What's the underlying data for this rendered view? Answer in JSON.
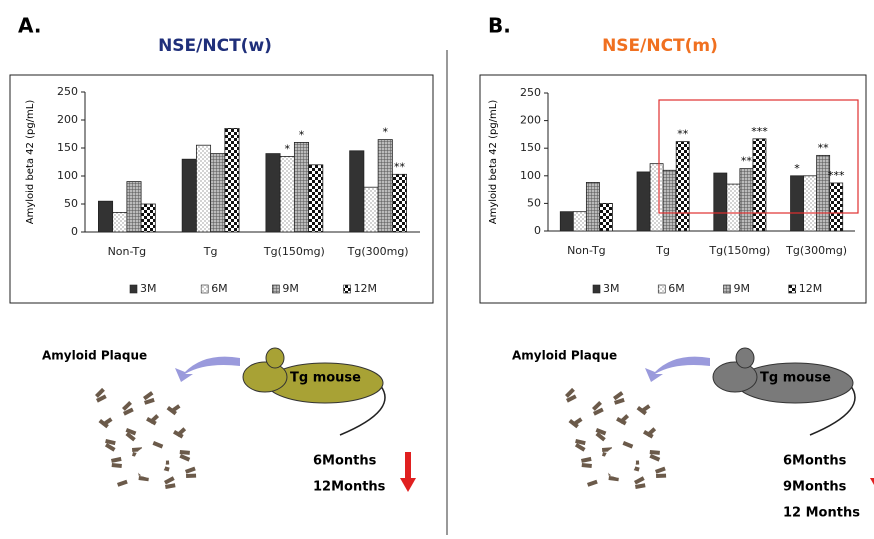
{
  "chart_data": [
    {
      "type": "bar",
      "panel_label": "A.",
      "title": "NSE/NCT(w)",
      "title_color": "#1f2f7a",
      "ylabel": "Amyloid beta 42  (pg/mL)",
      "categories": [
        "Non-Tg",
        "Tg",
        "Tg(150mg)",
        "Tg(300mg)"
      ],
      "series": [
        {
          "name": "3M",
          "color": "#333333",
          "pattern": "solid",
          "values": [
            55,
            130,
            140,
            145
          ],
          "labels": [
            null,
            null,
            null,
            null
          ]
        },
        {
          "name": "6M",
          "color": "#ffffff",
          "pattern": "dots",
          "values": [
            35,
            155,
            135,
            80
          ],
          "labels": [
            null,
            null,
            "*",
            null
          ]
        },
        {
          "name": "9M",
          "color": "#8a8a8a",
          "pattern": "grid",
          "values": [
            90,
            140,
            160,
            165
          ],
          "labels": [
            null,
            null,
            "*",
            "*"
          ]
        },
        {
          "name": "12M",
          "color": "#222222",
          "pattern": "checker",
          "values": [
            50,
            185,
            120,
            103
          ],
          "labels": [
            null,
            null,
            null,
            "**"
          ]
        }
      ],
      "ylim": [
        0,
        250
      ],
      "yticks": [
        0,
        50,
        100,
        150,
        200,
        250
      ],
      "illustration": {
        "plaque_label": "Amyloid Plaque",
        "mouse_label": "Tg mouse",
        "mouse_color": "#a8a235",
        "timepoints": [
          "6Months",
          "12Months"
        ]
      }
    },
    {
      "type": "bar",
      "panel_label": "B.",
      "title": "NSE/NCT(m)",
      "title_color": "#f07020",
      "ylabel": "Amyloid beta 42  (pg/mL)",
      "categories": [
        "Non-Tg",
        "Tg",
        "Tg(150mg)",
        "Tg(300mg)"
      ],
      "series": [
        {
          "name": "3M",
          "color": "#333333",
          "pattern": "solid",
          "values": [
            35,
            107,
            105,
            100
          ],
          "labels": [
            null,
            null,
            null,
            "*"
          ]
        },
        {
          "name": "6M",
          "color": "#ffffff",
          "pattern": "dots",
          "values": [
            35,
            122,
            85,
            100
          ],
          "labels": [
            null,
            null,
            null,
            null
          ]
        },
        {
          "name": "9M",
          "color": "#8a8a8a",
          "pattern": "grid",
          "values": [
            88,
            110,
            113,
            137
          ],
          "labels": [
            null,
            null,
            "**",
            "**"
          ]
        },
        {
          "name": "12M",
          "color": "#222222",
          "pattern": "checker",
          "values": [
            50,
            162,
            167,
            87
          ],
          "labels": [
            null,
            "**",
            "***",
            "***"
          ]
        }
      ],
      "ylim": [
        0,
        250
      ],
      "yticks": [
        0,
        50,
        100,
        150,
        200,
        250
      ],
      "illustration": {
        "plaque_label": "Amyloid Plaque",
        "mouse_label": "Tg mouse",
        "mouse_color": "#7a7a7a",
        "timepoints": [
          "6Months",
          "9Months",
          "12 Months"
        ]
      }
    }
  ]
}
